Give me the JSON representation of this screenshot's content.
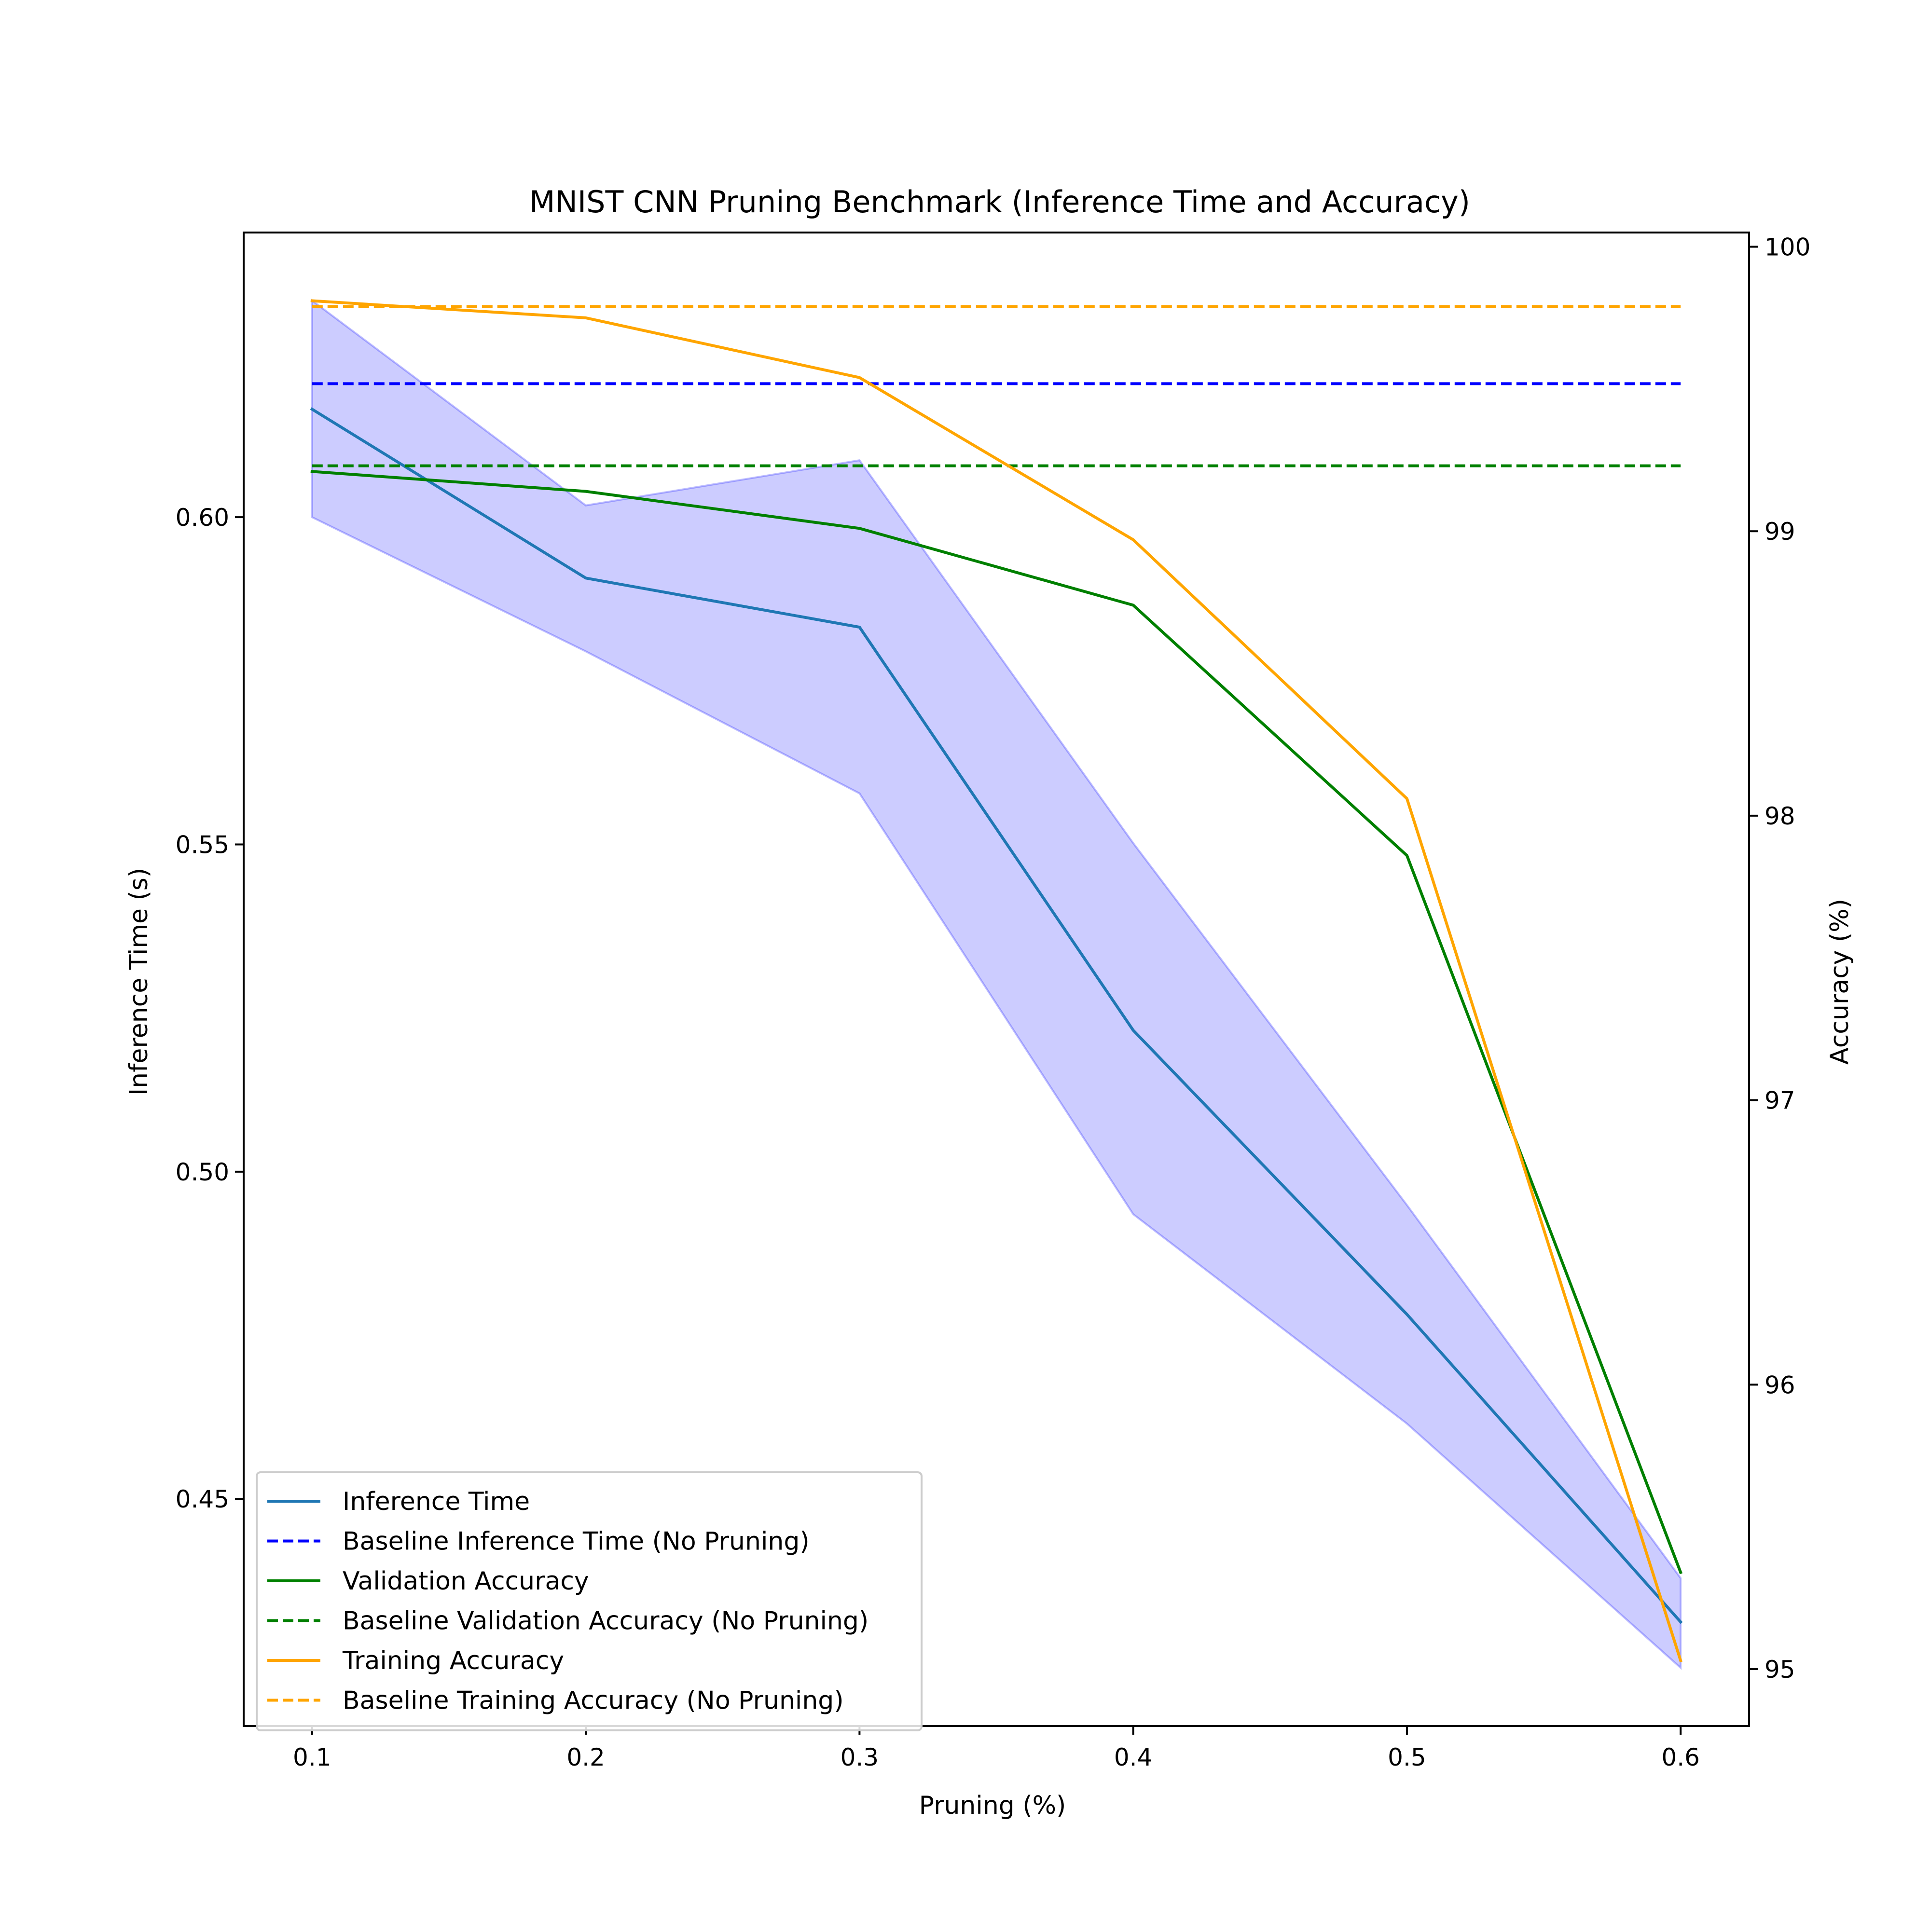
{
  "chart_data": {
    "type": "line",
    "title": "MNIST CNN Pruning Benchmark (Inference Time and Accuracy)",
    "xlabel": "Pruning (%)",
    "ylabel_left": "Inference Time (s)",
    "ylabel_right": "Accuracy (%)",
    "xlim": [
      0.075,
      0.625
    ],
    "ylim_left": [
      0.4153,
      0.6435
    ],
    "ylim_right": [
      94.8,
      100.05
    ],
    "x_ticks": [
      0.1,
      0.2,
      0.3,
      0.4,
      0.5,
      0.6
    ],
    "x_tick_labels": [
      "0.1",
      "0.2",
      "0.3",
      "0.4",
      "0.5",
      "0.6"
    ],
    "y_left_ticks": [
      0.45,
      0.5,
      0.55,
      0.6
    ],
    "y_left_tick_labels": [
      "0.45",
      "0.50",
      "0.55",
      "0.60"
    ],
    "y_right_ticks": [
      95,
      96,
      97,
      98,
      99,
      100
    ],
    "y_right_tick_labels": [
      "95",
      "96",
      "97",
      "98",
      "99",
      "100"
    ],
    "x": [
      0.1,
      0.2,
      0.3,
      0.4,
      0.5,
      0.6
    ],
    "band": {
      "axis": "left",
      "color": "#0000ff",
      "opacity": 0.2,
      "lower": [
        0.6,
        0.5795,
        0.5578,
        0.4935,
        0.4615,
        0.4242
      ],
      "upper": [
        0.6331,
        0.6018,
        0.6087,
        0.5502,
        0.4949,
        0.4379
      ]
    },
    "series": [
      {
        "name": "Inference Time",
        "axis": "left",
        "color": "#1f77b4",
        "style": "solid",
        "values": [
          0.6165,
          0.5907,
          0.5832,
          0.5216,
          0.4782,
          0.4312
        ]
      },
      {
        "name": "Baseline Inference Time (No Pruning)",
        "axis": "left",
        "color": "#0000ff",
        "style": "dashed",
        "values": [
          0.6204,
          0.6204,
          0.6204,
          0.6204,
          0.6204,
          0.6204
        ]
      },
      {
        "name": "Validation Accuracy",
        "axis": "right",
        "color": "#008000",
        "style": "solid",
        "values": [
          99.21,
          99.14,
          99.01,
          98.74,
          97.86,
          95.34
        ]
      },
      {
        "name": "Baseline Validation Accuracy (No Pruning)",
        "axis": "right",
        "color": "#008000",
        "style": "dashed",
        "values": [
          99.23,
          99.23,
          99.23,
          99.23,
          99.23,
          99.23
        ]
      },
      {
        "name": "Training Accuracy",
        "axis": "right",
        "color": "#ffa500",
        "style": "solid",
        "values": [
          99.81,
          99.75,
          99.54,
          98.97,
          98.06,
          95.03
        ]
      },
      {
        "name": "Baseline Training Accuracy (No Pruning)",
        "axis": "right",
        "color": "#ffa500",
        "style": "dashed",
        "values": [
          99.79,
          99.79,
          99.79,
          99.79,
          99.79,
          99.79
        ]
      }
    ],
    "legend_position": "lower-left",
    "grid": false
  }
}
